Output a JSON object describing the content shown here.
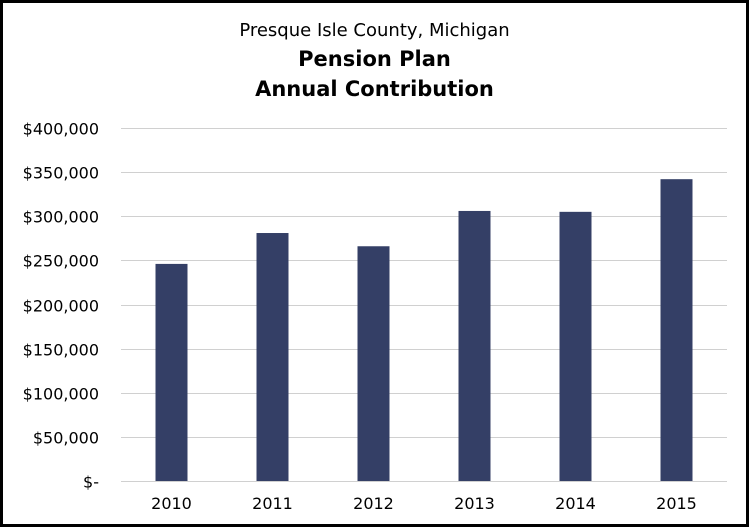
{
  "chart_data": {
    "type": "bar",
    "title": "Presque Isle County, Michigan",
    "subtitle": "Pension Plan",
    "subtitle2": "Annual Contribution",
    "xlabel": "",
    "ylabel": "",
    "categories": [
      "2010",
      "2011",
      "2012",
      "2013",
      "2014",
      "2015"
    ],
    "values": [
      246000,
      281000,
      266000,
      306000,
      305000,
      342000
    ],
    "ylim": [
      0,
      400000
    ],
    "yticks": [
      0,
      50000,
      100000,
      150000,
      200000,
      250000,
      300000,
      350000,
      400000
    ],
    "ytick_labels": [
      "$-",
      "$50,000",
      "$100,000",
      "$150,000",
      "$200,000",
      "$250,000",
      "$300,000",
      "$350,000",
      "$400,000"
    ],
    "grid": true,
    "legend": "none",
    "colors": {
      "bar": "#343f66",
      "grid": "#d0d0d0",
      "text": "#000000"
    }
  }
}
